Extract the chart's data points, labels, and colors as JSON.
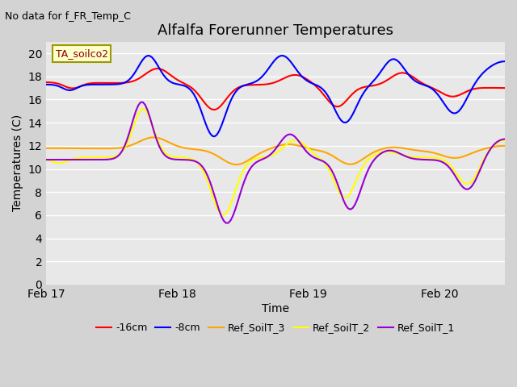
{
  "title": "Alfalfa Forerunner Temperatures",
  "no_data_text": "No data for f_FR_Temp_C",
  "ylabel": "Temperatures (C)",
  "xlabel": "Time",
  "annotation_label": "TA_soilco2",
  "fig_bg_color": "#d3d3d3",
  "plot_bg_color": "#e8e8e8",
  "ylim": [
    0,
    21
  ],
  "yticks": [
    0,
    2,
    4,
    6,
    8,
    10,
    12,
    14,
    16,
    18,
    20
  ],
  "xtick_labels": [
    "Feb 17",
    "Feb 18",
    "Feb 19",
    "Feb 20"
  ],
  "xtick_positions": [
    0,
    1,
    2,
    3
  ],
  "xlim": [
    0,
    3.5
  ],
  "legend_labels": [
    "-16cm",
    "-8cm",
    "Ref_SoilT_3",
    "Ref_SoilT_2",
    "Ref_SoilT_1"
  ],
  "colors": {
    "red": "#ff0000",
    "blue": "#0000ff",
    "orange": "#ffa500",
    "yellow": "#ffff00",
    "purple": "#9900cc"
  },
  "n_points": 200
}
